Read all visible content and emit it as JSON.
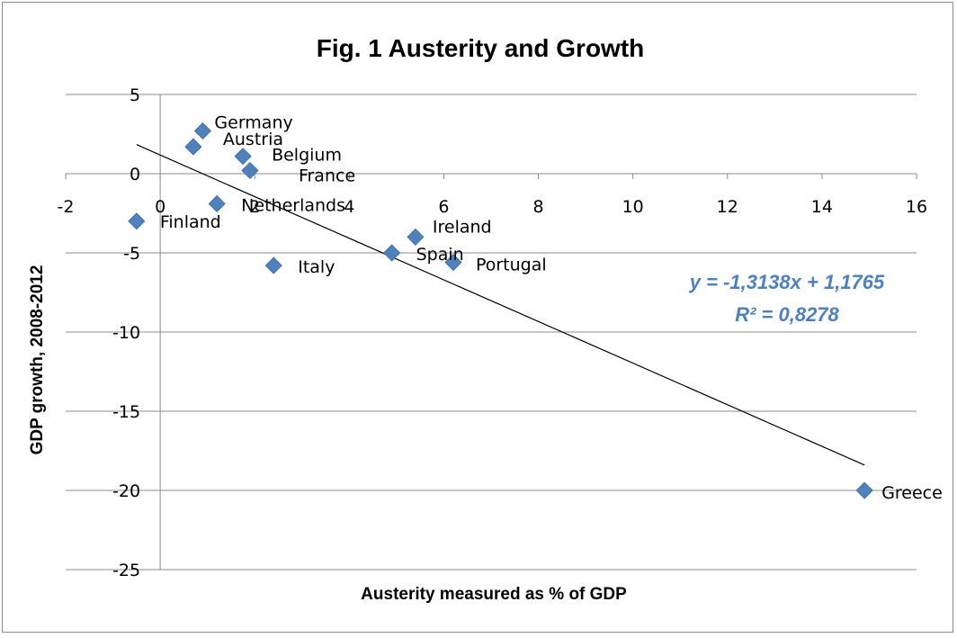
{
  "chart_data": {
    "type": "scatter",
    "title": "Fig. 1 Austerity and Growth",
    "xlabel": "Austerity measured as % of GDP",
    "ylabel": "GDP growth, 2008-2012",
    "xlim": [
      -2,
      16
    ],
    "ylim": [
      -25,
      5
    ],
    "xticks": [
      -2,
      0,
      2,
      4,
      6,
      8,
      10,
      12,
      14,
      16
    ],
    "yticks": [
      5,
      0,
      -5,
      -10,
      -15,
      -20,
      -25
    ],
    "xtick_labels": [
      "-2",
      "0",
      "2",
      "4",
      "6",
      "8",
      "10",
      "12",
      "14",
      "16"
    ],
    "ytick_labels": [
      "5",
      "0",
      "-5",
      "-10",
      "-15",
      "-20",
      "-25"
    ],
    "grid": "horizontal",
    "marker": "diamond",
    "marker_color": "#4f81bd",
    "points": [
      {
        "label": "Germany",
        "x": 0.9,
        "y": 2.7
      },
      {
        "label": "Austria",
        "x": 0.7,
        "y": 1.7
      },
      {
        "label": "Belgium",
        "x": 1.75,
        "y": 1.1
      },
      {
        "label": "France",
        "x": 1.9,
        "y": 0.2
      },
      {
        "label": "Netherlands",
        "x": 1.2,
        "y": -1.9
      },
      {
        "label": "Finland",
        "x": -0.5,
        "y": -3.0
      },
      {
        "label": "Italy",
        "x": 2.4,
        "y": -5.8
      },
      {
        "label": "Ireland",
        "x": 5.4,
        "y": -4.0
      },
      {
        "label": "Spain",
        "x": 4.9,
        "y": -5.0
      },
      {
        "label": "Portugal",
        "x": 6.2,
        "y": -5.6
      },
      {
        "label": "Greece",
        "x": 14.9,
        "y": -20.0
      }
    ],
    "trendline": {
      "type": "linear",
      "slope": -1.3138,
      "intercept": 1.1765,
      "x_range": [
        -0.5,
        14.9
      ],
      "color": "#000000",
      "equation": "y = -1,3138x + 1,1765",
      "r_squared": "R² = 0,8278",
      "equation_color": "#4f81bd"
    }
  }
}
